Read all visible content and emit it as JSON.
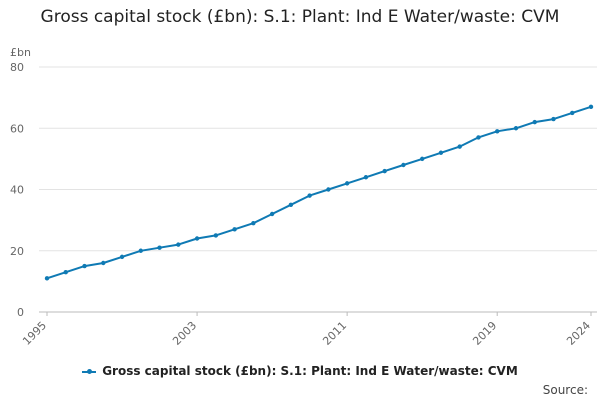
{
  "chart_data": {
    "type": "line",
    "title": "Gross capital stock (£bn): S.1: Plant: Ind E Water/waste: CVM",
    "ylabel": "£bn",
    "xlabel": "",
    "ylim": [
      0,
      80
    ],
    "yticks": [
      0,
      20,
      40,
      60,
      80
    ],
    "xlim": [
      1995,
      2024
    ],
    "xticks": [
      1995,
      2003,
      2011,
      2019,
      2024
    ],
    "grid": true,
    "legend_position": "bottom",
    "series": [
      {
        "name": "Gross capital stock (£bn): S.1: Plant: Ind E Water/waste: CVM",
        "color": "#0f7ab4",
        "x": [
          1995,
          1996,
          1997,
          1998,
          1999,
          2000,
          2001,
          2002,
          2003,
          2004,
          2005,
          2006,
          2007,
          2008,
          2009,
          2010,
          2011,
          2012,
          2013,
          2014,
          2015,
          2016,
          2017,
          2018,
          2019,
          2020,
          2021,
          2022,
          2023,
          2024
        ],
        "values": [
          11,
          13,
          15,
          16,
          18,
          20,
          21,
          22,
          24,
          25,
          27,
          29,
          32,
          35,
          38,
          40,
          42,
          44,
          46,
          48,
          50,
          52,
          54,
          57,
          59,
          60,
          62,
          63,
          65,
          67
        ]
      }
    ]
  },
  "footer": {
    "source_label": "Source:"
  }
}
